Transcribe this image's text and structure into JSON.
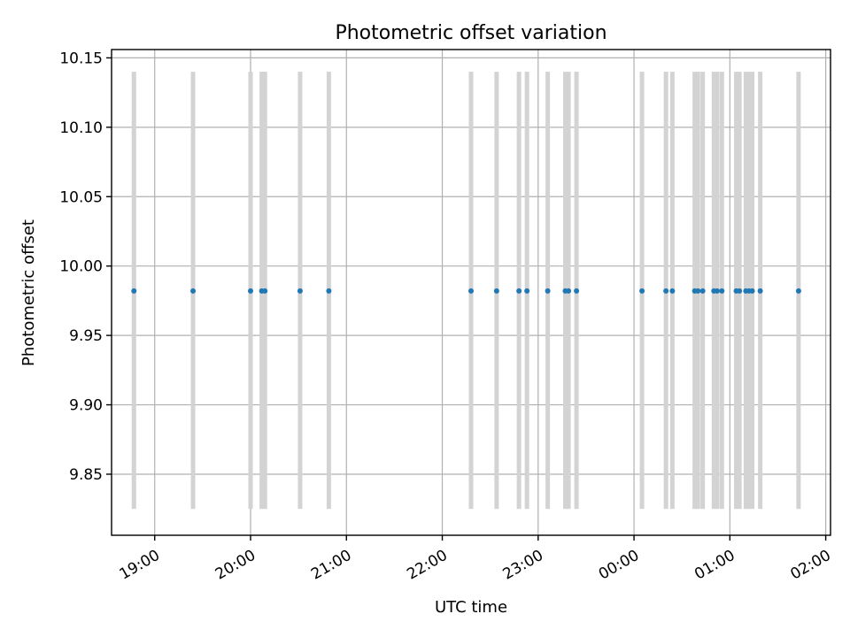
{
  "chart_data": {
    "type": "scatter",
    "title": "Photometric offset variation",
    "xlabel": "UTC time",
    "ylabel": "Photometric offset",
    "x_unit": "UTC time (HH:MM), spanning midnight",
    "xlim": [
      "18:33",
      "02:03"
    ],
    "ylim": [
      9.806,
      10.156
    ],
    "grid": true,
    "y_ticks": [
      9.85,
      9.9,
      9.95,
      10.0,
      10.05,
      10.1,
      10.15
    ],
    "y_tick_labels": [
      "9.85",
      "9.90",
      "9.95",
      "10.00",
      "10.05",
      "10.10",
      "10.15"
    ],
    "x_ticks": [
      "19:00",
      "20:00",
      "21:00",
      "22:00",
      "23:00",
      "00:00",
      "01:00",
      "02:00"
    ],
    "x_tick_labels": [
      "19:00",
      "20:00",
      "21:00",
      "22:00",
      "23:00",
      "00:00",
      "01:00",
      "02:00"
    ],
    "band_range": [
      9.825,
      10.14
    ],
    "colors": {
      "points": "#1f77b4",
      "bands": "#d3d3d3",
      "grid": "#b0b0b0"
    },
    "series": [
      {
        "values": [
          {
            "x": "18:47",
            "y": 9.982
          },
          {
            "x": "19:24",
            "y": 9.982
          },
          {
            "x": "20:00",
            "y": 9.982
          },
          {
            "x": "20:07",
            "y": 9.982
          },
          {
            "x": "20:09",
            "y": 9.982
          },
          {
            "x": "20:31",
            "y": 9.982
          },
          {
            "x": "20:49",
            "y": 9.982
          },
          {
            "x": "22:18",
            "y": 9.982
          },
          {
            "x": "22:34",
            "y": 9.982
          },
          {
            "x": "22:48",
            "y": 9.982
          },
          {
            "x": "22:53",
            "y": 9.982
          },
          {
            "x": "23:06",
            "y": 9.982
          },
          {
            "x": "23:17",
            "y": 9.982
          },
          {
            "x": "23:19",
            "y": 9.982
          },
          {
            "x": "23:24",
            "y": 9.982
          },
          {
            "x": "00:05",
            "y": 9.982
          },
          {
            "x": "00:20",
            "y": 9.982
          },
          {
            "x": "00:24",
            "y": 9.982
          },
          {
            "x": "00:38",
            "y": 9.982
          },
          {
            "x": "00:40",
            "y": 9.982
          },
          {
            "x": "00:43",
            "y": 9.982
          },
          {
            "x": "00:50",
            "y": 9.982
          },
          {
            "x": "00:52",
            "y": 9.982
          },
          {
            "x": "00:55",
            "y": 9.982
          },
          {
            "x": "01:04",
            "y": 9.982
          },
          {
            "x": "01:06",
            "y": 9.982
          },
          {
            "x": "01:10",
            "y": 9.982
          },
          {
            "x": "01:12",
            "y": 9.982
          },
          {
            "x": "01:14",
            "y": 9.982
          },
          {
            "x": "01:19",
            "y": 9.982
          },
          {
            "x": "01:43",
            "y": 9.982
          }
        ]
      }
    ]
  }
}
